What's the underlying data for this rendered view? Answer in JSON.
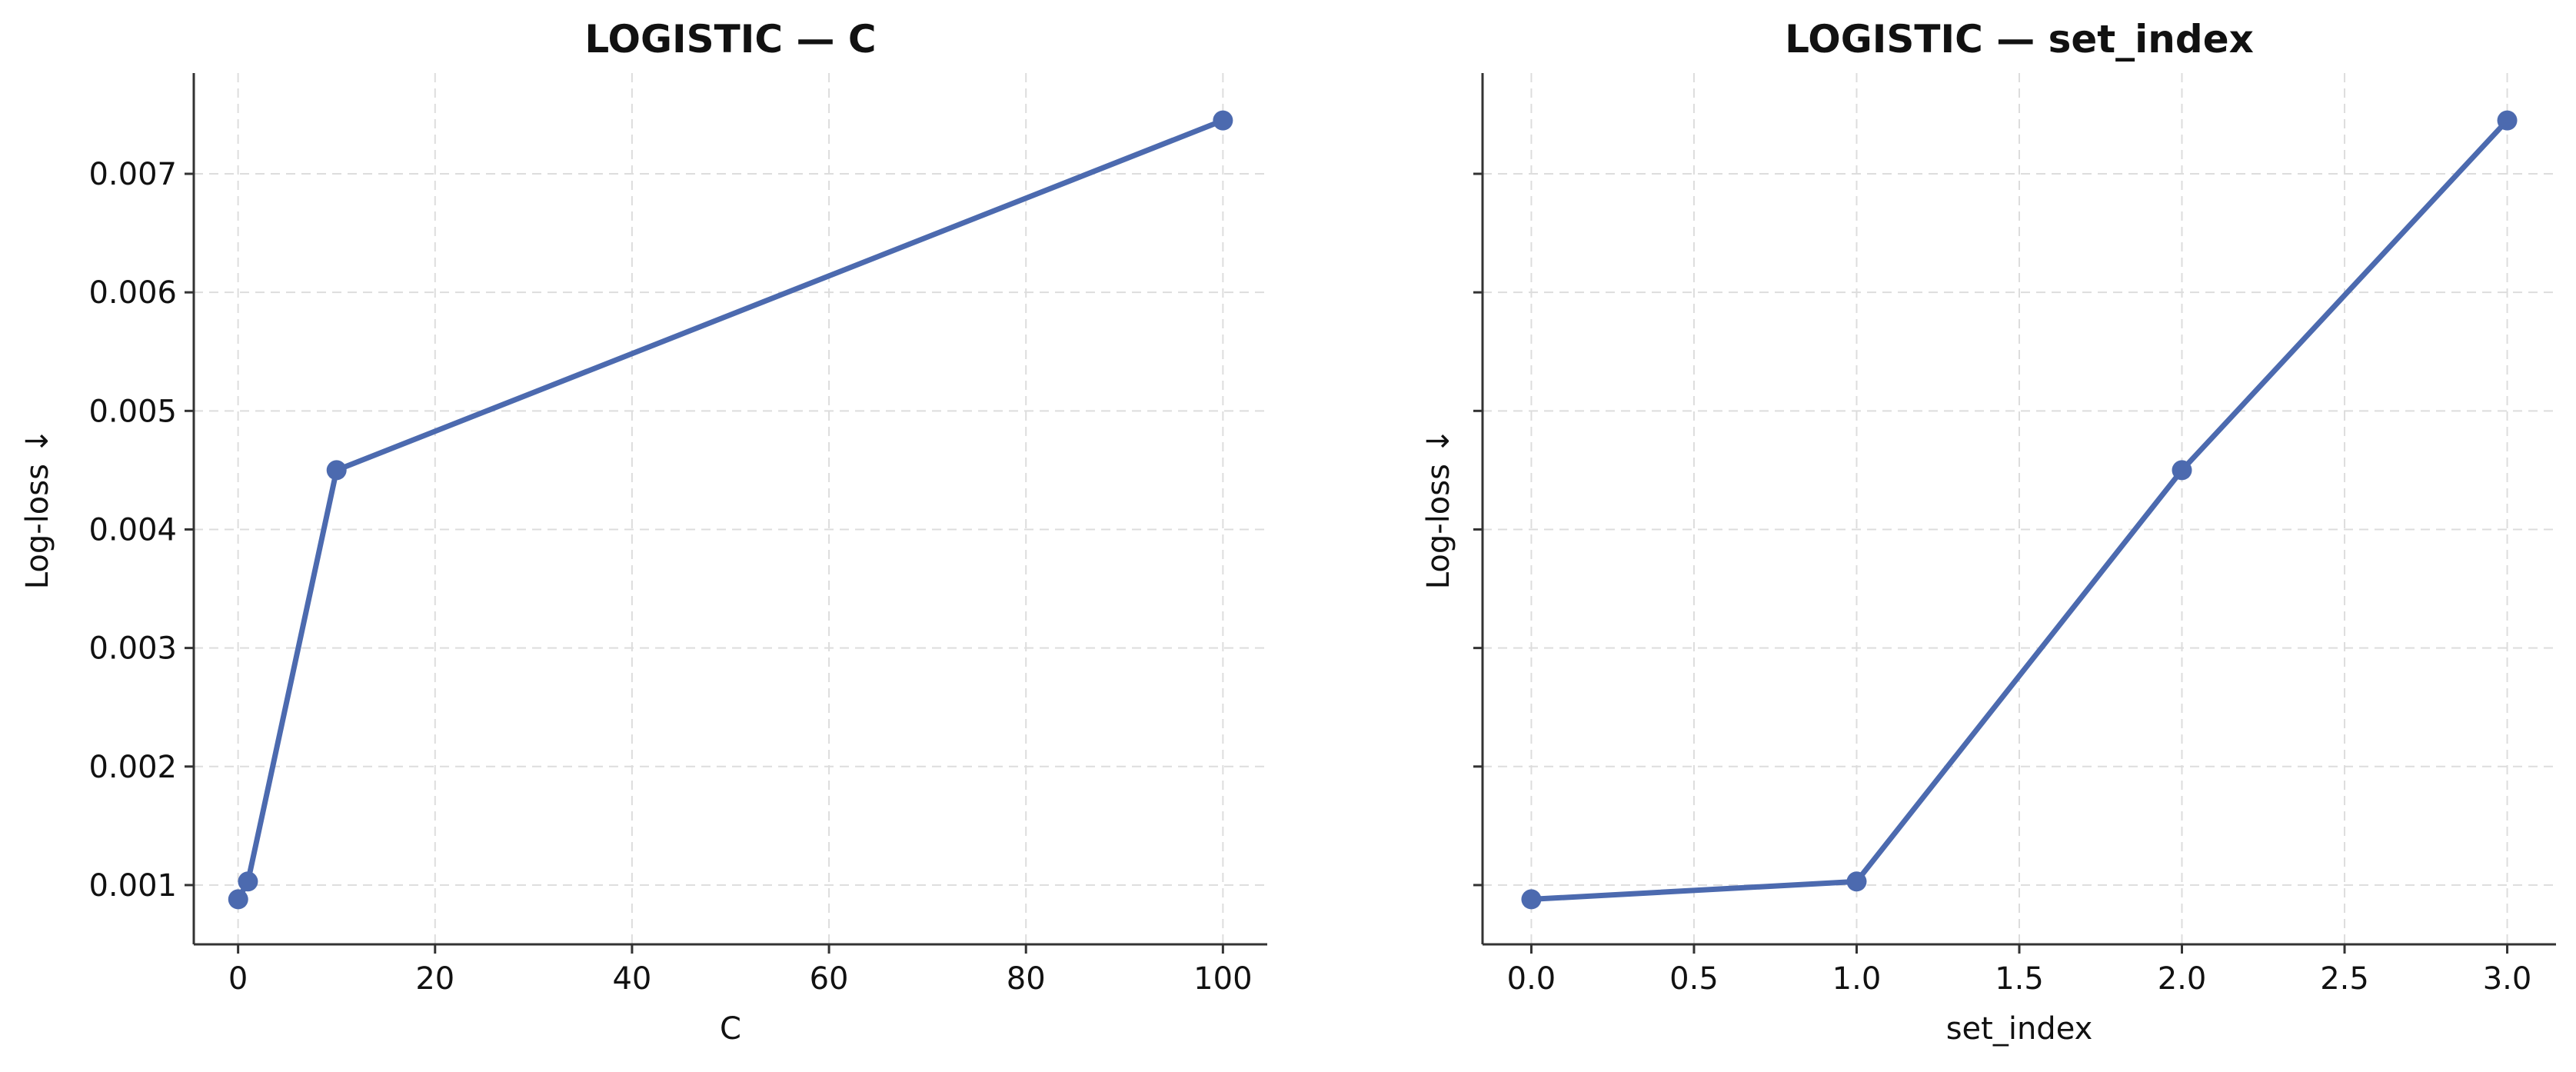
{
  "colors": {
    "series": "#4C6AAF"
  },
  "chart_data": [
    {
      "type": "line",
      "title": "LOGISTIC — C",
      "xlabel": "C",
      "ylabel": "Log-loss ↓",
      "xlim": [
        -4.5,
        104.5
      ],
      "ylim": [
        0.0005,
        0.00785
      ],
      "xticks": [
        0,
        20,
        40,
        60,
        80,
        100
      ],
      "xtick_labels": [
        "0",
        "20",
        "40",
        "60",
        "80",
        "100"
      ],
      "yticks": [
        0.001,
        0.002,
        0.003,
        0.004,
        0.005,
        0.006,
        0.007
      ],
      "ytick_labels": [
        "0.001",
        "0.002",
        "0.003",
        "0.004",
        "0.005",
        "0.006",
        "0.007"
      ],
      "show_ytick_labels": true,
      "grid": true,
      "series": [
        {
          "x": [
            0.01,
            1,
            10,
            100
          ],
          "y": [
            0.00088,
            0.00103,
            0.0045,
            0.00745
          ]
        }
      ]
    },
    {
      "type": "line",
      "title": "LOGISTIC — set_index",
      "xlabel": "set_index",
      "ylabel": "Log-loss ↓",
      "xlim": [
        -0.15,
        3.15
      ],
      "ylim": [
        0.0005,
        0.00785
      ],
      "xticks": [
        0.0,
        0.5,
        1.0,
        1.5,
        2.0,
        2.5,
        3.0
      ],
      "xtick_labels": [
        "0.0",
        "0.5",
        "1.0",
        "1.5",
        "2.0",
        "2.5",
        "3.0"
      ],
      "yticks": [
        0.001,
        0.002,
        0.003,
        0.004,
        0.005,
        0.006,
        0.007
      ],
      "ytick_labels": [],
      "show_ytick_labels": false,
      "grid": true,
      "series": [
        {
          "x": [
            0,
            1,
            2,
            3
          ],
          "y": [
            0.00088,
            0.00103,
            0.0045,
            0.00745
          ]
        }
      ]
    }
  ]
}
